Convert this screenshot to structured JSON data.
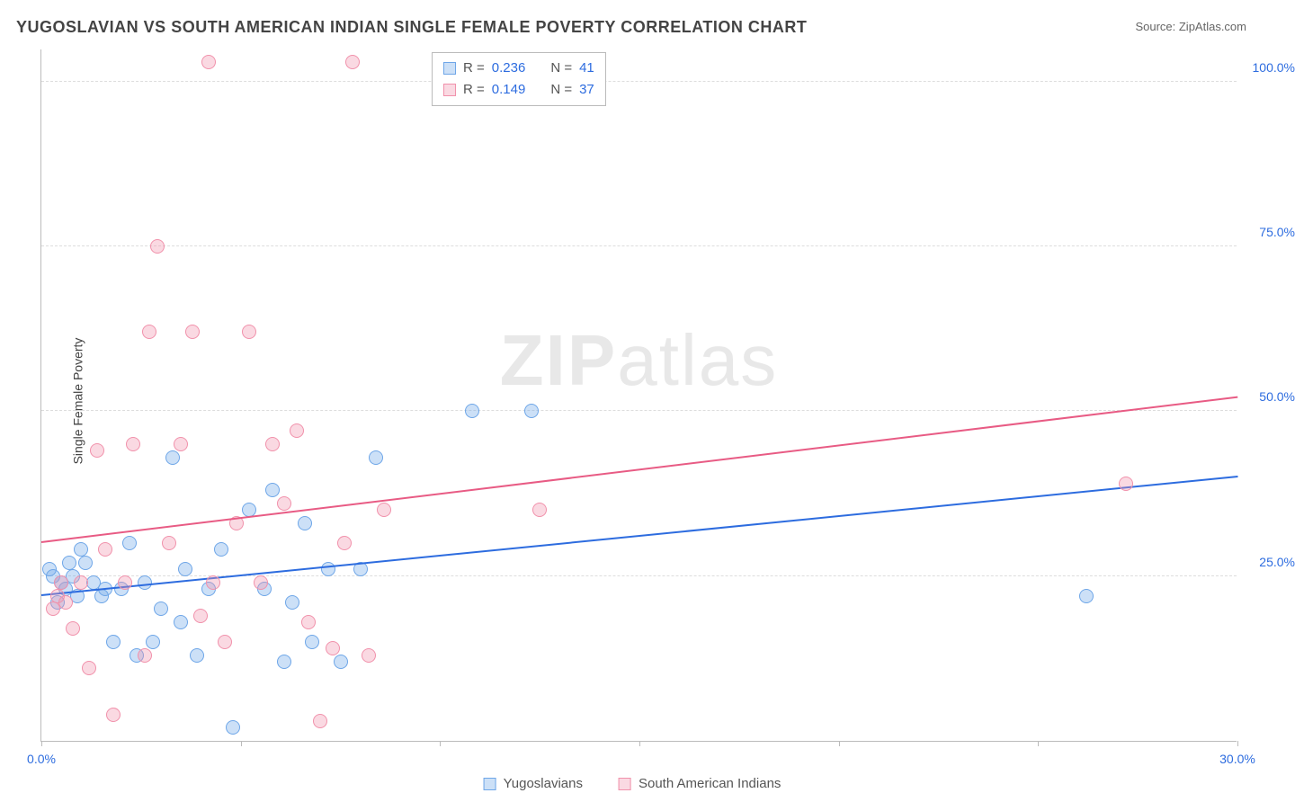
{
  "title": "YUGOSLAVIAN VS SOUTH AMERICAN INDIAN SINGLE FEMALE POVERTY CORRELATION CHART",
  "source_label": "Source: ",
  "source_value": "ZipAtlas.com",
  "ylabel": "Single Female Poverty",
  "watermark": {
    "bold": "ZIP",
    "rest": "atlas"
  },
  "chart": {
    "type": "scatter",
    "background_color": "#ffffff",
    "grid_color": "#dddddd",
    "axis_color": "#bbbbbb",
    "tick_label_color": "#2d6cdf",
    "xlim": [
      0,
      30
    ],
    "ylim": [
      0,
      105
    ],
    "xticks": [
      0,
      5,
      10,
      15,
      20,
      25,
      30
    ],
    "xtick_labels": {
      "0": "0.0%",
      "30": "30.0%"
    },
    "yticks": [
      25,
      50,
      75,
      100
    ],
    "ytick_labels": {
      "25": "25.0%",
      "50": "50.0%",
      "75": "75.0%",
      "100": "100.0%"
    },
    "marker_radius": 8,
    "marker_border_width": 1.5,
    "marker_fill_opacity": 0.35,
    "series": [
      {
        "key": "yugo",
        "label": "Yugoslavians",
        "color_stroke": "#6ea6e8",
        "color_fill": "rgba(110,166,232,0.35)",
        "trend_color": "#2d6cdf",
        "R": "0.236",
        "N": "41",
        "trend": {
          "x1": 0,
          "y1": 22,
          "x2": 30,
          "y2": 40
        },
        "points": [
          [
            0.2,
            26
          ],
          [
            0.3,
            25
          ],
          [
            0.4,
            21
          ],
          [
            0.5,
            24
          ],
          [
            0.6,
            23
          ],
          [
            0.7,
            27
          ],
          [
            0.8,
            25
          ],
          [
            0.9,
            22
          ],
          [
            1.0,
            29
          ],
          [
            1.1,
            27
          ],
          [
            1.3,
            24
          ],
          [
            1.5,
            22
          ],
          [
            1.6,
            23
          ],
          [
            1.8,
            15
          ],
          [
            2.0,
            23
          ],
          [
            2.2,
            30
          ],
          [
            2.4,
            13
          ],
          [
            2.6,
            24
          ],
          [
            2.8,
            15
          ],
          [
            3.0,
            20
          ],
          [
            3.3,
            43
          ],
          [
            3.5,
            18
          ],
          [
            3.6,
            26
          ],
          [
            3.9,
            13
          ],
          [
            4.2,
            23
          ],
          [
            4.5,
            29
          ],
          [
            4.8,
            2
          ],
          [
            5.2,
            35
          ],
          [
            5.6,
            23
          ],
          [
            5.8,
            38
          ],
          [
            6.1,
            12
          ],
          [
            6.3,
            21
          ],
          [
            6.6,
            33
          ],
          [
            6.8,
            15
          ],
          [
            7.2,
            26
          ],
          [
            7.5,
            12
          ],
          [
            8.0,
            26
          ],
          [
            8.4,
            43
          ],
          [
            10.8,
            50
          ],
          [
            12.3,
            50
          ],
          [
            26.2,
            22
          ]
        ]
      },
      {
        "key": "sai",
        "label": "South American Indians",
        "color_stroke": "#f191ab",
        "color_fill": "rgba(241,145,171,0.35)",
        "trend_color": "#e85b84",
        "R": "0.149",
        "N": "37",
        "trend": {
          "x1": 0,
          "y1": 30,
          "x2": 30,
          "y2": 52
        },
        "points": [
          [
            0.3,
            20
          ],
          [
            0.4,
            22
          ],
          [
            0.5,
            24
          ],
          [
            0.6,
            21
          ],
          [
            0.8,
            17
          ],
          [
            1.0,
            24
          ],
          [
            1.2,
            11
          ],
          [
            1.4,
            44
          ],
          [
            1.6,
            29
          ],
          [
            1.8,
            4
          ],
          [
            2.1,
            24
          ],
          [
            2.3,
            45
          ],
          [
            2.6,
            13
          ],
          [
            2.7,
            62
          ],
          [
            2.9,
            75
          ],
          [
            3.2,
            30
          ],
          [
            3.5,
            45
          ],
          [
            3.8,
            62
          ],
          [
            4.0,
            19
          ],
          [
            4.3,
            24
          ],
          [
            4.2,
            103
          ],
          [
            4.6,
            15
          ],
          [
            4.9,
            33
          ],
          [
            5.2,
            62
          ],
          [
            5.5,
            24
          ],
          [
            5.8,
            45
          ],
          [
            6.1,
            36
          ],
          [
            6.4,
            47
          ],
          [
            6.7,
            18
          ],
          [
            7.0,
            3
          ],
          [
            7.3,
            14
          ],
          [
            7.6,
            30
          ],
          [
            7.8,
            103
          ],
          [
            8.2,
            13
          ],
          [
            8.6,
            35
          ],
          [
            12.5,
            35
          ],
          [
            27.2,
            39
          ]
        ]
      }
    ]
  },
  "stat_legend": {
    "R_label": "R =",
    "N_label": "N ="
  }
}
